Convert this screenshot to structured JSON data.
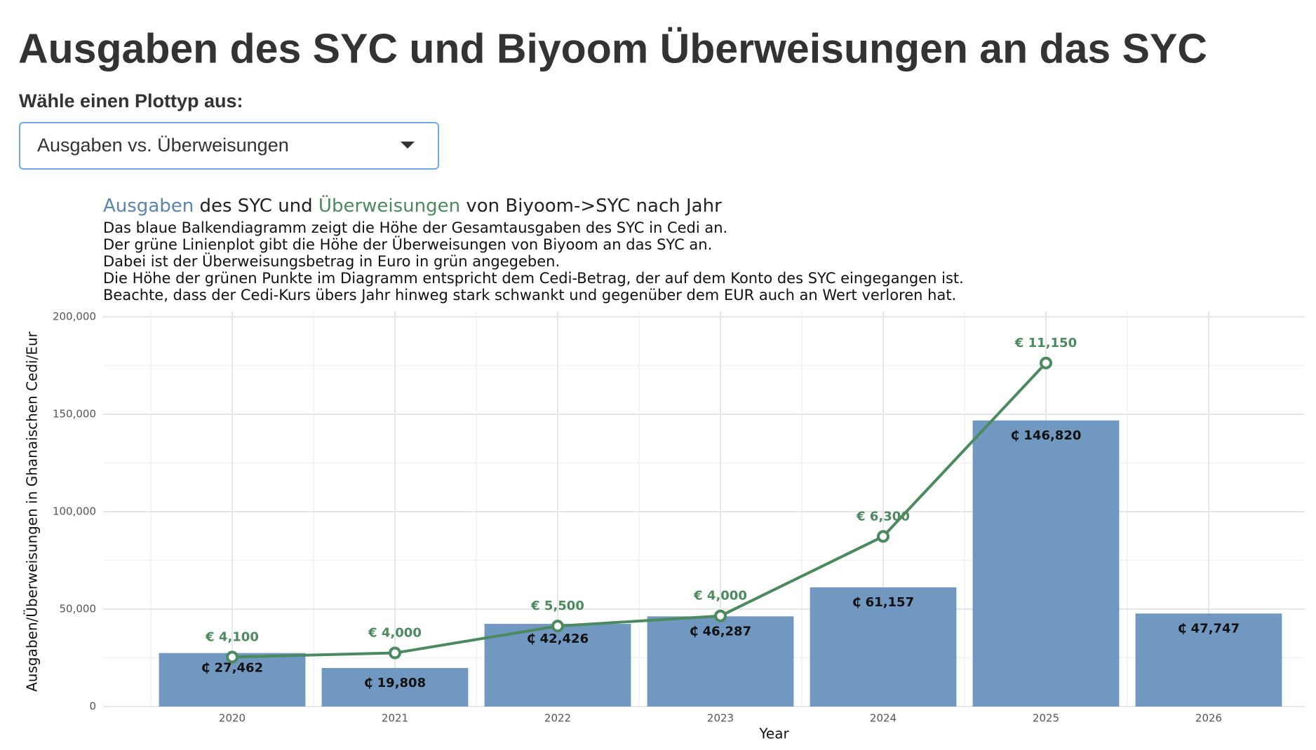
{
  "page": {
    "title": "Ausgaben des SYC und Biyoom Überweisungen an das SYC",
    "select_label": "Wähle einen Plottyp aus:",
    "select_value": "Ausgaben vs. Überweisungen"
  },
  "chart_data": {
    "type": "bar_line",
    "title_parts": [
      {
        "text": "Ausgaben",
        "color": "#5b84b1"
      },
      {
        "text": " des SYC und ",
        "color": "#222222"
      },
      {
        "text": "Überweisungen",
        "color": "#4b8a5e"
      },
      {
        "text": " von Biyoom->SYC nach Jahr",
        "color": "#222222"
      }
    ],
    "subtitle": [
      "Das blaue Balkendiagramm zeigt die Höhe der Gesamtausgaben des SYC in Cedi an.",
      "Der grüne Linienplot gibt die Höhe der Überweisungen von Biyoom an das SYC an.",
      "Dabei ist der Überweisungsbetrag in Euro in grün angegeben.",
      "Die Höhe der grünen Punkte im Diagramm entspricht dem Cedi-Betrag, der auf dem Konto des SYC eingegangen ist.",
      "Beachte, dass der Cedi-Kurs übers Jahr hinweg stark schwankt und gegenüber dem EUR auch an Wert verloren hat."
    ],
    "x_label": "Year",
    "y_label": "Ausgaben/Überweisungen in Ghanaischen Cedi/Eur",
    "categories": [
      "2020",
      "2021",
      "2022",
      "2023",
      "2024",
      "2025",
      "2026"
    ],
    "series": [
      {
        "type": "bar",
        "color": "#7098c0",
        "values": [
          27462,
          19808,
          42426,
          46287,
          61157,
          146820,
          47747
        ],
        "value_labels": [
          "₵ 27,462",
          "₵ 19,808",
          "₵ 42,426",
          "₵ 46,287",
          "₵ 61,157",
          "₵ 146,820",
          "₵ 47,747"
        ]
      },
      {
        "type": "line",
        "color": "#4b8a5e",
        "values": [
          25400,
          27500,
          41300,
          46500,
          87300,
          176300,
          null
        ],
        "point_labels": [
          "€ 4,100",
          "€ 4,000",
          "€ 5,500",
          "€ 4,000",
          "€ 6,300",
          "€ 11,150",
          null
        ]
      }
    ],
    "ylim": [
      0,
      200000
    ],
    "yticks": [
      0,
      {
        "value": 50000,
        "label": "50,000"
      },
      {
        "value": 100000,
        "label": "100,000"
      },
      {
        "value": 150000,
        "label": "150,000"
      },
      {
        "value": 200000,
        "label": "200,000"
      }
    ],
    "grid": true
  }
}
